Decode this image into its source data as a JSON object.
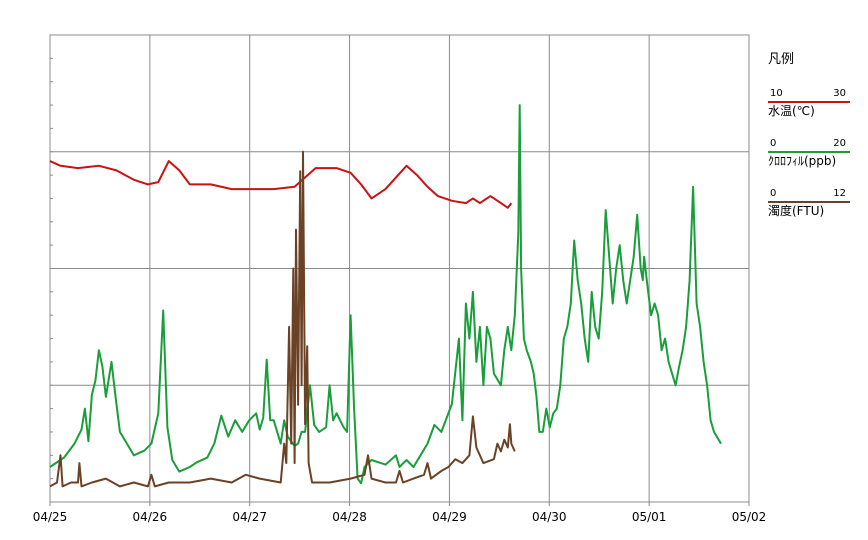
{
  "legend": {
    "title": "凡例",
    "items": [
      {
        "name": "水温(℃)",
        "min": "10",
        "max": "30",
        "color": "#cc1111"
      },
      {
        "name": "ｸﾛﾛﾌｨﾙ(ppb)",
        "min": "0",
        "max": "20",
        "color": "#1a9e3a"
      },
      {
        "name": "濁度(FTU)",
        "min": "0",
        "max": "12",
        "color": "#6b4226"
      }
    ]
  },
  "chart_data": {
    "type": "line",
    "title": "",
    "x_tick_labels": [
      "04/25",
      "04/26",
      "04/27",
      "04/28",
      "04/29",
      "04/30",
      "05/01",
      "05/02"
    ],
    "x_range_days": [
      0,
      7
    ],
    "grid": true,
    "legend_placement": "right",
    "series": [
      {
        "name": "水温(℃)",
        "color": "#cc1111",
        "ylim": [
          10,
          30
        ],
        "points": [
          [
            0,
            24.6
          ],
          [
            0.15,
            24.4
          ],
          [
            0.4,
            24.3
          ],
          [
            0.7,
            24.4
          ],
          [
            0.95,
            24.2
          ],
          [
            1.2,
            23.8
          ],
          [
            1.4,
            23.6
          ],
          [
            1.55,
            23.7
          ],
          [
            1.7,
            24.6
          ],
          [
            1.85,
            24.2
          ],
          [
            2.0,
            23.6
          ],
          [
            2.3,
            23.6
          ],
          [
            2.6,
            23.4
          ],
          [
            2.9,
            23.4
          ],
          [
            3.2,
            23.4
          ],
          [
            3.5,
            23.5
          ],
          [
            3.8,
            24.3
          ],
          [
            4.1,
            24.3
          ],
          [
            4.3,
            24.1
          ],
          [
            4.45,
            23.6
          ],
          [
            4.6,
            23.0
          ],
          [
            4.8,
            23.4
          ],
          [
            4.95,
            23.9
          ],
          [
            5.1,
            24.4
          ],
          [
            5.25,
            24.0
          ],
          [
            5.4,
            23.5
          ],
          [
            5.55,
            23.1
          ],
          [
            5.75,
            22.9
          ],
          [
            5.95,
            22.8
          ],
          [
            6.05,
            23.0
          ],
          [
            6.15,
            22.8
          ],
          [
            6.3,
            23.1
          ],
          [
            6.45,
            22.8
          ],
          [
            6.55,
            22.6
          ],
          [
            6.6,
            22.8
          ]
        ]
      },
      {
        "name": "ｸﾛﾛﾌｨﾙ(ppb)",
        "color": "#1a9e3a",
        "ylim": [
          0,
          20
        ],
        "points": [
          [
            0,
            1.5
          ],
          [
            0.2,
            1.9
          ],
          [
            0.35,
            2.5
          ],
          [
            0.45,
            3.1
          ],
          [
            0.5,
            4.0
          ],
          [
            0.55,
            2.6
          ],
          [
            0.6,
            4.6
          ],
          [
            0.65,
            5.2
          ],
          [
            0.7,
            6.5
          ],
          [
            0.75,
            5.8
          ],
          [
            0.8,
            4.5
          ],
          [
            0.88,
            6.0
          ],
          [
            0.93,
            4.7
          ],
          [
            1.0,
            3.0
          ],
          [
            1.2,
            2.0
          ],
          [
            1.35,
            2.2
          ],
          [
            1.45,
            2.5
          ],
          [
            1.55,
            3.8
          ],
          [
            1.62,
            8.2
          ],
          [
            1.68,
            3.2
          ],
          [
            1.75,
            1.8
          ],
          [
            1.85,
            1.3
          ],
          [
            2.0,
            1.5
          ],
          [
            2.1,
            1.7
          ],
          [
            2.25,
            1.9
          ],
          [
            2.35,
            2.5
          ],
          [
            2.45,
            3.7
          ],
          [
            2.55,
            2.8
          ],
          [
            2.65,
            3.5
          ],
          [
            2.75,
            3.0
          ],
          [
            2.85,
            3.5
          ],
          [
            2.95,
            3.8
          ],
          [
            3.0,
            3.1
          ],
          [
            3.05,
            3.6
          ],
          [
            3.1,
            6.1
          ],
          [
            3.15,
            3.5
          ],
          [
            3.2,
            3.5
          ],
          [
            3.3,
            2.5
          ],
          [
            3.35,
            3.5
          ],
          [
            3.4,
            2.8
          ],
          [
            3.5,
            2.4
          ],
          [
            3.55,
            2.5
          ],
          [
            3.6,
            3.0
          ],
          [
            3.65,
            3.0
          ],
          [
            3.72,
            5.0
          ],
          [
            3.78,
            3.3
          ],
          [
            3.85,
            3.0
          ],
          [
            3.95,
            3.2
          ],
          [
            4.0,
            5.0
          ],
          [
            4.05,
            3.5
          ],
          [
            4.1,
            3.8
          ],
          [
            4.15,
            3.5
          ],
          [
            4.2,
            3.2
          ],
          [
            4.25,
            3.0
          ],
          [
            4.3,
            8.0
          ],
          [
            4.35,
            4.0
          ],
          [
            4.4,
            1.0
          ],
          [
            4.45,
            0.8
          ],
          [
            4.5,
            1.5
          ],
          [
            4.6,
            1.8
          ],
          [
            4.8,
            1.6
          ],
          [
            4.95,
            2.0
          ],
          [
            5.0,
            1.5
          ],
          [
            5.1,
            1.8
          ],
          [
            5.2,
            1.5
          ],
          [
            5.3,
            2.0
          ],
          [
            5.4,
            2.5
          ],
          [
            5.5,
            3.3
          ],
          [
            5.6,
            3.0
          ],
          [
            5.75,
            4.2
          ],
          [
            5.85,
            7.0
          ],
          [
            5.9,
            3.5
          ],
          [
            5.95,
            8.5
          ],
          [
            6.0,
            7.0
          ],
          [
            6.05,
            9.0
          ],
          [
            6.1,
            6.0
          ],
          [
            6.15,
            7.5
          ],
          [
            6.2,
            5.0
          ],
          [
            6.25,
            7.5
          ],
          [
            6.3,
            7.0
          ],
          [
            6.35,
            5.5
          ],
          [
            6.45,
            5.0
          ],
          [
            6.5,
            6.5
          ],
          [
            6.55,
            7.5
          ],
          [
            6.6,
            6.5
          ],
          [
            6.65,
            8.0
          ],
          [
            6.7,
            11.5
          ],
          [
            6.72,
            17.0
          ],
          [
            6.74,
            10.0
          ],
          [
            6.78,
            7.0
          ],
          [
            6.82,
            6.5
          ],
          [
            6.88,
            6.0
          ],
          [
            6.92,
            5.5
          ],
          [
            6.96,
            4.5
          ],
          [
            7.0,
            3.0
          ],
          [
            7.05,
            3.0
          ],
          [
            7.1,
            4.0
          ],
          [
            7.15,
            3.2
          ],
          [
            7.2,
            3.8
          ],
          [
            7.25,
            4.0
          ],
          [
            7.3,
            5.0
          ],
          [
            7.35,
            7.0
          ],
          [
            7.4,
            7.5
          ],
          [
            7.45,
            8.5
          ],
          [
            7.5,
            11.2
          ],
          [
            7.55,
            9.5
          ],
          [
            7.6,
            8.5
          ],
          [
            7.65,
            7.0
          ],
          [
            7.7,
            6.0
          ],
          [
            7.75,
            9.0
          ],
          [
            7.8,
            7.5
          ],
          [
            7.85,
            7.0
          ],
          [
            7.9,
            9.0
          ],
          [
            7.95,
            12.5
          ],
          [
            8.0,
            10.5
          ],
          [
            8.05,
            8.5
          ],
          [
            8.1,
            10.0
          ],
          [
            8.15,
            11.0
          ],
          [
            8.2,
            9.5
          ],
          [
            8.25,
            8.5
          ],
          [
            8.3,
            9.5
          ],
          [
            8.35,
            10.5
          ],
          [
            8.4,
            12.3
          ],
          [
            8.45,
            10.0
          ],
          [
            8.48,
            9.5
          ],
          [
            8.5,
            10.5
          ],
          [
            8.55,
            9.2
          ],
          [
            8.6,
            8.0
          ],
          [
            8.65,
            8.5
          ],
          [
            8.7,
            8.0
          ],
          [
            8.75,
            6.5
          ],
          [
            8.8,
            7.0
          ],
          [
            8.85,
            6.0
          ],
          [
            8.9,
            5.5
          ],
          [
            8.95,
            5.0
          ],
          [
            9.0,
            5.8
          ],
          [
            9.05,
            6.5
          ],
          [
            9.1,
            7.5
          ],
          [
            9.15,
            9.5
          ],
          [
            9.2,
            13.5
          ],
          [
            9.25,
            8.5
          ],
          [
            9.3,
            7.5
          ],
          [
            9.35,
            6.0
          ],
          [
            9.4,
            5.0
          ],
          [
            9.45,
            3.5
          ],
          [
            9.5,
            3.0
          ],
          [
            9.6,
            2.5
          ]
        ]
      },
      {
        "name": "濁度(FTU)",
        "color": "#6b4226",
        "ylim": [
          0,
          12
        ],
        "points": [
          [
            0,
            0.4
          ],
          [
            0.1,
            0.5
          ],
          [
            0.15,
            1.2
          ],
          [
            0.18,
            0.4
          ],
          [
            0.3,
            0.5
          ],
          [
            0.4,
            0.5
          ],
          [
            0.42,
            1.0
          ],
          [
            0.45,
            0.4
          ],
          [
            0.6,
            0.5
          ],
          [
            0.8,
            0.6
          ],
          [
            1.0,
            0.4
          ],
          [
            1.2,
            0.5
          ],
          [
            1.4,
            0.4
          ],
          [
            1.45,
            0.7
          ],
          [
            1.5,
            0.4
          ],
          [
            1.7,
            0.5
          ],
          [
            2.0,
            0.5
          ],
          [
            2.3,
            0.6
          ],
          [
            2.6,
            0.5
          ],
          [
            2.8,
            0.7
          ],
          [
            3.0,
            0.6
          ],
          [
            3.3,
            0.5
          ],
          [
            3.35,
            1.5
          ],
          [
            3.38,
            1.0
          ],
          [
            3.42,
            4.5
          ],
          [
            3.45,
            1.5
          ],
          [
            3.48,
            6.0
          ],
          [
            3.5,
            1.0
          ],
          [
            3.52,
            7.0
          ],
          [
            3.55,
            2.5
          ],
          [
            3.58,
            8.5
          ],
          [
            3.6,
            3.0
          ],
          [
            3.62,
            9.0
          ],
          [
            3.65,
            2.0
          ],
          [
            3.68,
            4.0
          ],
          [
            3.7,
            1.0
          ],
          [
            3.72,
            0.8
          ],
          [
            3.75,
            0.5
          ],
          [
            4.0,
            0.5
          ],
          [
            4.3,
            0.6
          ],
          [
            4.5,
            0.7
          ],
          [
            4.55,
            1.2
          ],
          [
            4.6,
            0.6
          ],
          [
            4.8,
            0.5
          ],
          [
            4.95,
            0.5
          ],
          [
            5.0,
            0.8
          ],
          [
            5.05,
            0.5
          ],
          [
            5.2,
            0.6
          ],
          [
            5.35,
            0.7
          ],
          [
            5.4,
            1.0
          ],
          [
            5.45,
            0.6
          ],
          [
            5.6,
            0.8
          ],
          [
            5.7,
            0.9
          ],
          [
            5.8,
            1.1
          ],
          [
            5.9,
            1.0
          ],
          [
            6.0,
            1.2
          ],
          [
            6.05,
            2.2
          ],
          [
            6.1,
            1.4
          ],
          [
            6.2,
            1.0
          ],
          [
            6.35,
            1.1
          ],
          [
            6.4,
            1.5
          ],
          [
            6.45,
            1.3
          ],
          [
            6.5,
            1.6
          ],
          [
            6.55,
            1.4
          ],
          [
            6.58,
            2.0
          ],
          [
            6.6,
            1.5
          ],
          [
            6.65,
            1.3
          ]
        ]
      }
    ]
  }
}
